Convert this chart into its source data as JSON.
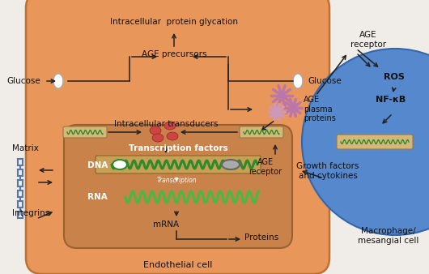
{
  "bg_color": "#f0ede8",
  "cell_color": "#e8965a",
  "cell_edge": "#c07030",
  "nucleus_color": "#c8824a",
  "nucleus_inner": "#b87038",
  "macro_color": "#5588cc",
  "macro_edge": "#3366aa",
  "receptor_tan": "#d4b878",
  "dna_green": "#2d8a2d",
  "rna_green": "#44bb44",
  "arrow_color": "#222222",
  "red_ball": "#cc4444",
  "matrix_blue": "#5577aa",
  "age_purple": "#bb77aa",
  "text_color": "#111111",
  "labels": {
    "intracellular_glycation": "Intracellular  protein glycation",
    "age_precursors": "AGE precursors",
    "intracellular_transducers": "Intracellular transducers",
    "transcription_factors": "Transcription factors",
    "dna": "DNA",
    "rna": "RNA",
    "mrna": "mRNA",
    "proteins": "Proteins",
    "transcription": "Transcription",
    "matrix": "Matrix",
    "integrins": "Integrins",
    "glucose_left": "Glucose",
    "glucose_right": "Glucose",
    "age_plasma": "AGE\nplasma\nproteins",
    "age_receptor_cell": "AGE\nreceptor",
    "age_receptor_macro": "AGE\nreceptor",
    "ros": "ROS",
    "nfkb": "NF-κB",
    "growth_factors": "Growth factors\nand cytokines",
    "macrophage": "Macrophage/\nmesangial cell",
    "endothelial": "Endothelial cell"
  }
}
